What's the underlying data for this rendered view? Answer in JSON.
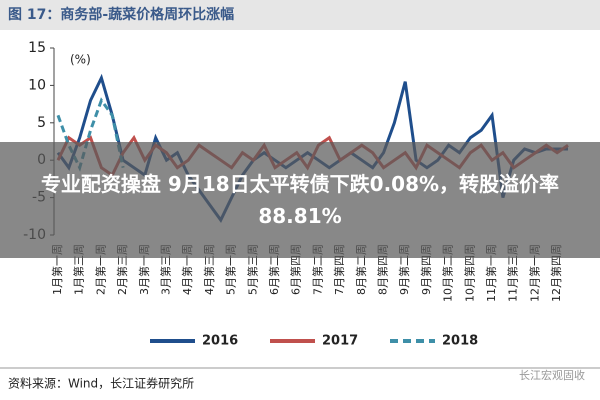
{
  "chart_data": {
    "type": "line",
    "title": "图 17：商务部-蔬菜价格周环比涨幅",
    "y_label": "(%)",
    "categories": [
      "1月第一周",
      null,
      "1月第三周",
      null,
      "2月第一周",
      null,
      "2月第三周",
      null,
      "3月第一周",
      null,
      "3月第三周",
      null,
      "4月第一周",
      null,
      "4月第三周",
      null,
      "5月第一周",
      null,
      "5月第三周",
      null,
      "6月第二周",
      null,
      "6月第四周",
      null,
      "7月第二周",
      null,
      "7月第四周",
      null,
      "8月第二周",
      null,
      "8月第四周",
      null,
      "9月第二周",
      null,
      "9月第四周",
      null,
      "10月第二周",
      null,
      "10月第四周",
      null,
      "11月第一周",
      null,
      "11月第三周",
      null,
      "12月第一周",
      null,
      "12月第四周",
      null
    ],
    "series": [
      {
        "name": "2016",
        "color": "#1f4e8c",
        "dashed": false,
        "values": [
          1,
          -1,
          3,
          8,
          11,
          6,
          0,
          -1,
          -2,
          3,
          0,
          1,
          -2,
          -4,
          -6,
          -8,
          -5,
          -2,
          0,
          1,
          0,
          -1,
          0,
          1,
          0,
          -1,
          0,
          1,
          0,
          -1,
          1,
          5,
          10.5,
          0,
          -1,
          0,
          2,
          1,
          3,
          4,
          6,
          -5,
          0,
          1.5,
          1,
          1.5,
          1.5,
          1.5
        ]
      },
      {
        "name": "2017",
        "color": "#c0504d",
        "dashed": false,
        "values": [
          0,
          3,
          2,
          3,
          -1,
          -2,
          1,
          3,
          0,
          2,
          1,
          -1,
          0,
          2,
          1,
          0,
          -1,
          1,
          0,
          2,
          -1,
          0,
          1,
          -1,
          2,
          3,
          0,
          1,
          2,
          1,
          -1,
          0,
          1,
          -1,
          2,
          1,
          0,
          -1,
          1,
          2,
          0,
          1,
          -1,
          0,
          1,
          2,
          1,
          2
        ]
      },
      {
        "name": "2018",
        "color": "#3e8fa8",
        "dashed": true,
        "values": [
          6,
          2,
          -1,
          4,
          8,
          6,
          -1,
          null,
          null,
          null,
          null,
          null,
          null,
          null,
          null,
          null,
          null,
          null,
          null,
          null,
          null,
          null,
          null,
          null,
          null,
          null,
          null,
          null,
          null,
          null,
          null,
          null,
          null,
          null,
          null,
          null,
          null,
          null,
          null,
          null,
          null,
          null,
          null,
          null,
          null,
          null,
          null,
          null
        ]
      }
    ],
    "ylim": [
      -10,
      15
    ],
    "yticks": [
      -10,
      -5,
      0,
      5,
      10,
      15
    ],
    "source": "资料来源：Wind，长江证券研究所",
    "watermark": "长江宏观固收",
    "banner": "专业配资操盘 9月18日太平转债下跌0.08%，转股溢价率88.81%"
  }
}
